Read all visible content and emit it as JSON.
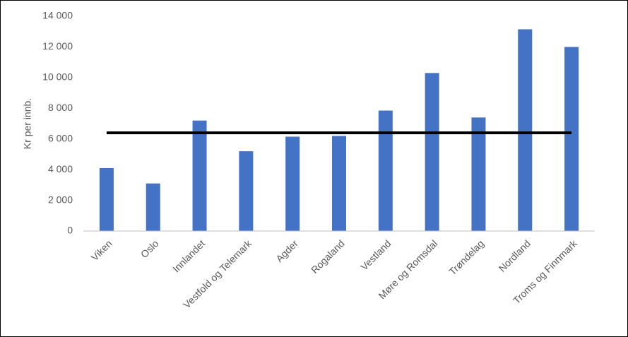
{
  "chart_data": {
    "type": "bar",
    "y_label": "Kr per innb.",
    "categories": [
      "Viken",
      "Oslo",
      "Innlandet",
      "Vestfold og Telemark",
      "Agder",
      "Rogaland",
      "Vestland",
      "Møre og Romsdal",
      "Trøndelag",
      "Nordland",
      "Troms og Finnmark"
    ],
    "values": [
      4100,
      3100,
      7200,
      5200,
      6150,
      6200,
      7850,
      10300,
      7400,
      13150,
      12000
    ],
    "color": "#4472c4",
    "reference_value": 6400,
    "reference_color": "#000000",
    "ylim": [
      0,
      14000
    ],
    "yticks": [
      0,
      {
        "value": 2000,
        "label": "2 000"
      },
      {
        "value": 4000,
        "label": "4 000"
      },
      {
        "value": 6000,
        "label": "6 000"
      },
      {
        "value": 8000,
        "label": "8 000"
      },
      {
        "value": 10000,
        "label": "10 000"
      },
      {
        "value": 12000,
        "label": "12 000"
      },
      {
        "value": 14000,
        "label": "14 000"
      }
    ],
    "grid": false
  }
}
